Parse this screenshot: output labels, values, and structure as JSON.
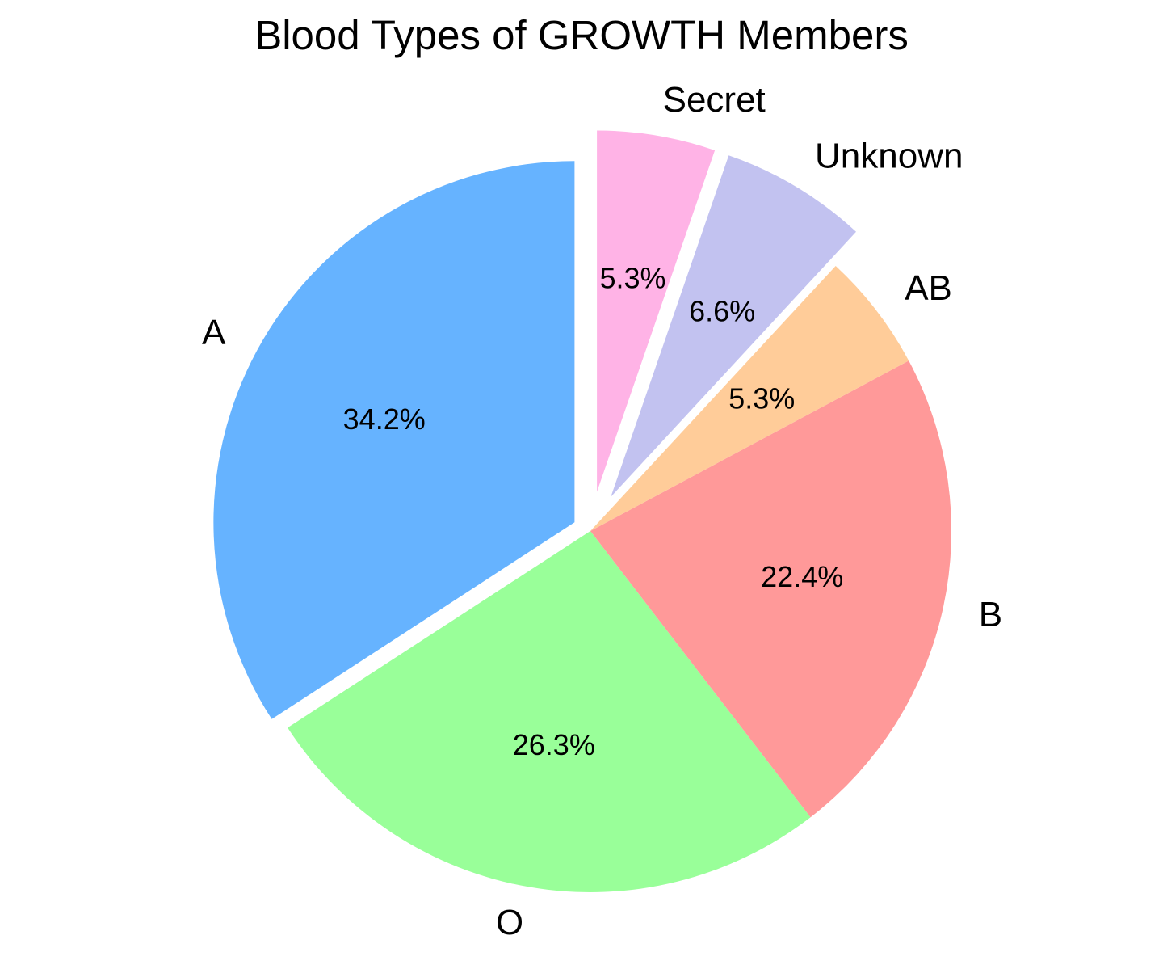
{
  "chart_data": {
    "type": "pie",
    "title": "Blood Types of GROWTH Members",
    "categories": [
      "A",
      "O",
      "B",
      "AB",
      "Unknown",
      "Secret"
    ],
    "values": [
      34.2,
      26.3,
      22.4,
      5.3,
      6.6,
      5.3
    ],
    "percent_labels": [
      "34.2%",
      "26.3%",
      "22.4%",
      "5.3%",
      "6.6%",
      "5.3%"
    ],
    "colors": [
      "#66b3ff",
      "#99ff99",
      "#ff9999",
      "#ffcc99",
      "#c2c2f0",
      "#ffb3e6"
    ],
    "explode": [
      0.05,
      0,
      0,
      0,
      0.11,
      0.11
    ],
    "start_angle": 90,
    "counterclock": true,
    "label_distance": 1.1,
    "pct_distance": 0.6,
    "legend": "none",
    "grid": "off",
    "text_color": "#000000",
    "background_color": "#ffffff"
  }
}
